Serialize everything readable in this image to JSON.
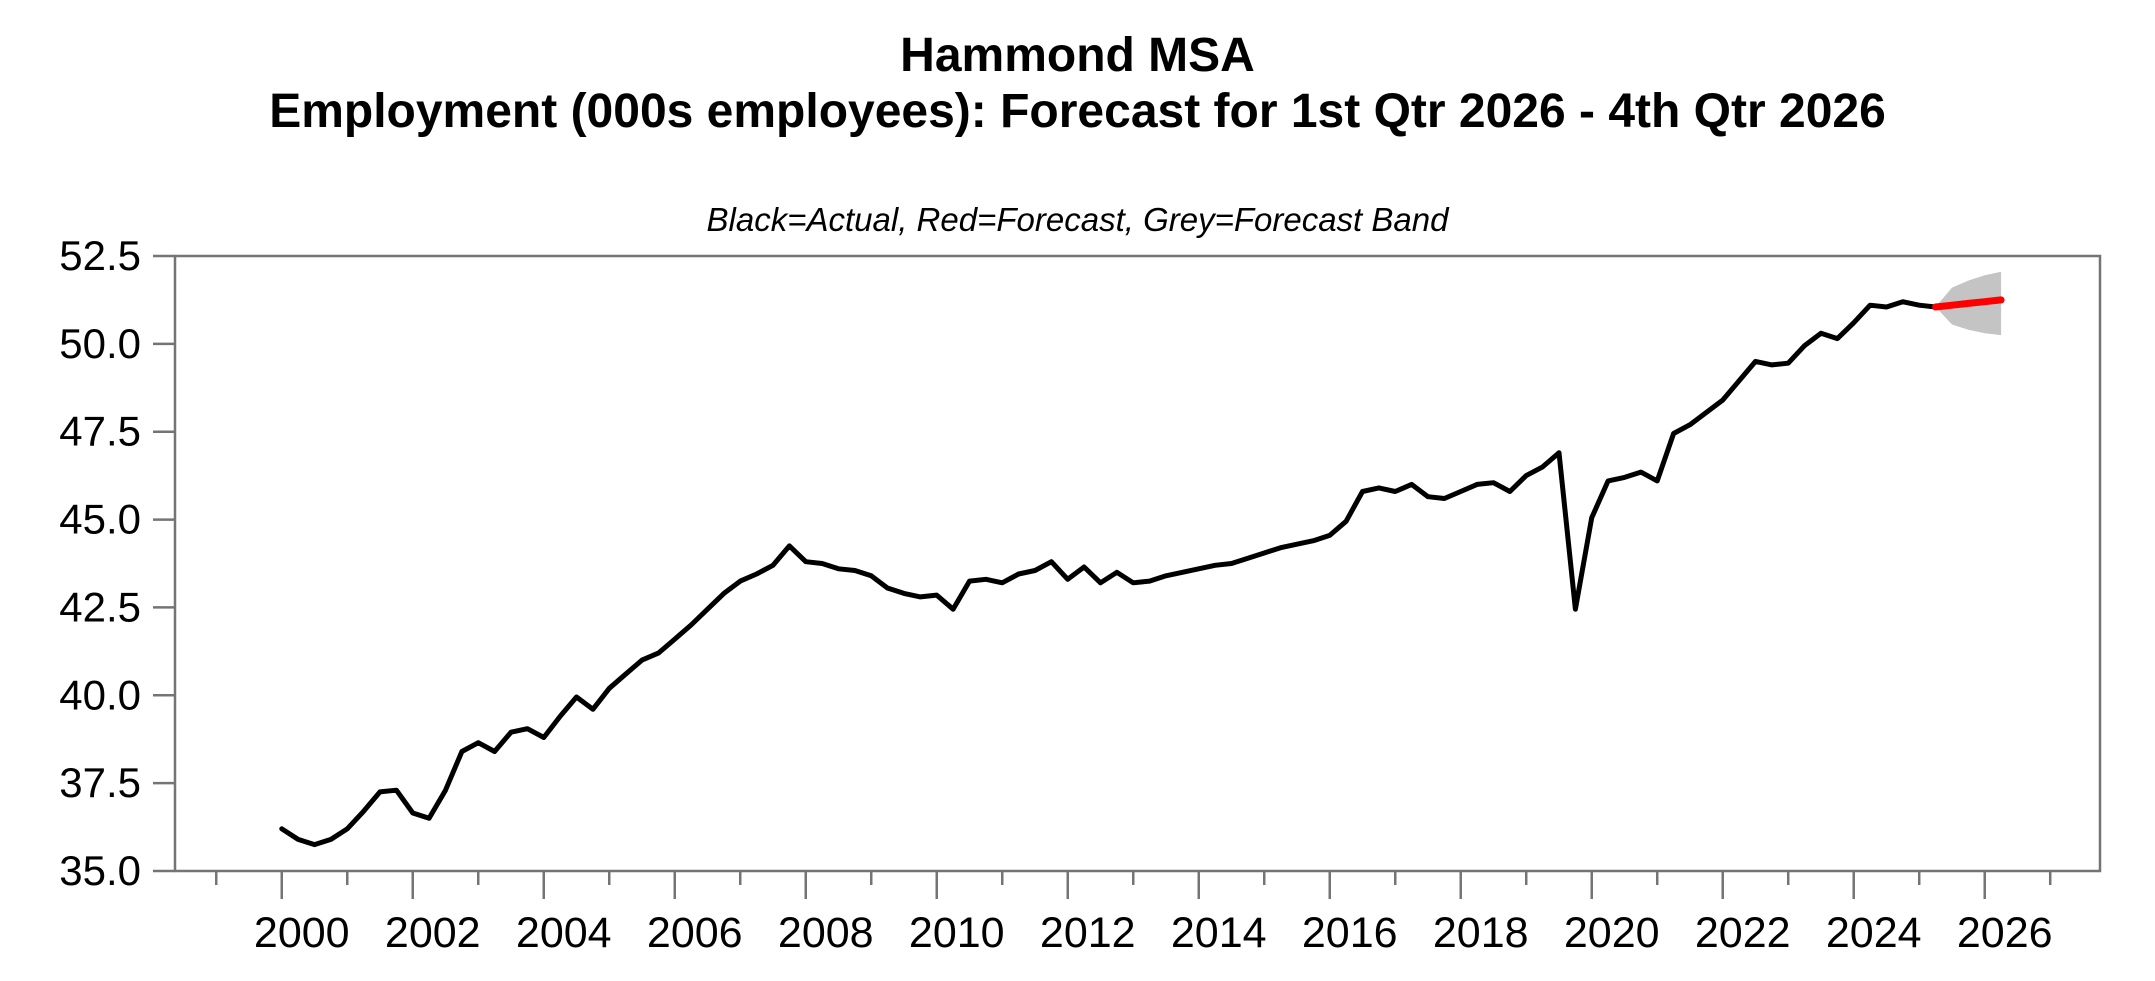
{
  "title": {
    "line1": "Hammond MSA",
    "line2": "Employment (000s employees): Forecast for 1st Qtr 2026 - 4th Qtr 2026"
  },
  "subtitle": "Black=Actual, Red=Forecast, Grey=Forecast Band",
  "colors": {
    "actual": "#000000",
    "forecast": "#ff0000",
    "band": "#c4c4c4",
    "axis": "#747474",
    "text": "#000000",
    "background": "#ffffff"
  },
  "chart_data": {
    "type": "line",
    "title": "Hammond MSA",
    "subtitle": "Employment (000s employees): Forecast for 1st Qtr 2026 - 4th Qtr 2026",
    "legend_note": "Black=Actual, Red=Forecast, Grey=Forecast Band",
    "frequency": "quarterly",
    "unit": "thousands of employees",
    "grid": false,
    "xlim": [
      1998.87,
      2028.26
    ],
    "ylim": [
      35.0,
      52.5
    ],
    "tick_anchor_offset_years": 0.5,
    "y_ticks": [
      {
        "value": 35.0,
        "label": "35.0"
      },
      {
        "value": 37.5,
        "label": "37.5"
      },
      {
        "value": 40.0,
        "label": "40.0"
      },
      {
        "value": 42.5,
        "label": "42.5"
      },
      {
        "value": 45.0,
        "label": "45.0"
      },
      {
        "value": 47.5,
        "label": "47.5"
      },
      {
        "value": 50.0,
        "label": "50.0"
      },
      {
        "value": 52.5,
        "label": "52.5"
      }
    ],
    "x_ticks": [
      {
        "year": 1999,
        "label": "",
        "major": false
      },
      {
        "year": 2000,
        "label": "2000",
        "major": true
      },
      {
        "year": 2001,
        "label": "",
        "major": false
      },
      {
        "year": 2002,
        "label": "2002",
        "major": true
      },
      {
        "year": 2003,
        "label": "",
        "major": false
      },
      {
        "year": 2004,
        "label": "2004",
        "major": true
      },
      {
        "year": 2005,
        "label": "",
        "major": false
      },
      {
        "year": 2006,
        "label": "2006",
        "major": true
      },
      {
        "year": 2007,
        "label": "",
        "major": false
      },
      {
        "year": 2008,
        "label": "2008",
        "major": true
      },
      {
        "year": 2009,
        "label": "",
        "major": false
      },
      {
        "year": 2010,
        "label": "2010",
        "major": true
      },
      {
        "year": 2011,
        "label": "",
        "major": false
      },
      {
        "year": 2012,
        "label": "2012",
        "major": true
      },
      {
        "year": 2013,
        "label": "",
        "major": false
      },
      {
        "year": 2014,
        "label": "2014",
        "major": true
      },
      {
        "year": 2015,
        "label": "",
        "major": false
      },
      {
        "year": 2016,
        "label": "2016",
        "major": true
      },
      {
        "year": 2017,
        "label": "",
        "major": false
      },
      {
        "year": 2018,
        "label": "2018",
        "major": true
      },
      {
        "year": 2019,
        "label": "",
        "major": false
      },
      {
        "year": 2020,
        "label": "2020",
        "major": true
      },
      {
        "year": 2021,
        "label": "",
        "major": false
      },
      {
        "year": 2022,
        "label": "2022",
        "major": true
      },
      {
        "year": 2023,
        "label": "",
        "major": false
      },
      {
        "year": 2024,
        "label": "2024",
        "major": true
      },
      {
        "year": 2025,
        "label": "",
        "major": false
      },
      {
        "year": 2026,
        "label": "2026",
        "major": true
      },
      {
        "year": 2027,
        "label": "",
        "major": false
      }
    ],
    "series": [
      {
        "name": "Actual",
        "color_key": "actual",
        "start_label": "2000Q3",
        "end_label": "2025Q4",
        "t_start": 2000.5,
        "t_step": 0.25,
        "values": [
          36.2,
          35.9,
          35.75,
          35.9,
          36.2,
          36.7,
          37.25,
          37.3,
          36.65,
          36.5,
          37.3,
          38.4,
          38.65,
          38.4,
          38.95,
          39.05,
          38.8,
          39.4,
          39.95,
          39.6,
          40.2,
          40.6,
          41.0,
          41.2,
          41.6,
          42.0,
          42.45,
          42.9,
          43.25,
          43.45,
          43.7,
          44.25,
          43.8,
          43.75,
          43.6,
          43.55,
          43.4,
          43.05,
          42.9,
          42.8,
          42.85,
          42.45,
          43.25,
          43.3,
          43.2,
          43.45,
          43.55,
          43.8,
          43.3,
          43.65,
          43.2,
          43.5,
          43.2,
          43.25,
          43.4,
          43.5,
          43.6,
          43.7,
          43.75,
          43.9,
          44.05,
          44.2,
          44.3,
          44.4,
          44.55,
          44.95,
          45.8,
          45.9,
          45.8,
          46.0,
          45.65,
          45.6,
          45.8,
          46.0,
          46.05,
          45.8,
          46.25,
          46.5,
          46.9,
          42.45,
          45.05,
          46.1,
          46.2,
          46.35,
          46.1,
          47.45,
          47.7,
          48.05,
          48.4,
          48.95,
          49.5,
          49.4,
          49.45,
          49.95,
          50.3,
          50.15,
          50.6,
          51.1,
          51.05,
          51.2,
          51.1,
          51.05
        ]
      },
      {
        "name": "Forecast",
        "color_key": "forecast",
        "start_label": "2025Q4",
        "end_label": "2026Q4",
        "t_start": 2025.75,
        "t_step": 0.25,
        "values": [
          51.05,
          51.1,
          51.15,
          51.2,
          51.25
        ]
      }
    ],
    "band": {
      "name": "Forecast Band",
      "color_key": "band",
      "t_start": 2025.75,
      "t_step": 0.25,
      "upper": [
        51.05,
        51.6,
        51.8,
        51.95,
        52.05
      ],
      "lower": [
        51.05,
        50.55,
        50.4,
        50.3,
        50.25
      ]
    }
  }
}
